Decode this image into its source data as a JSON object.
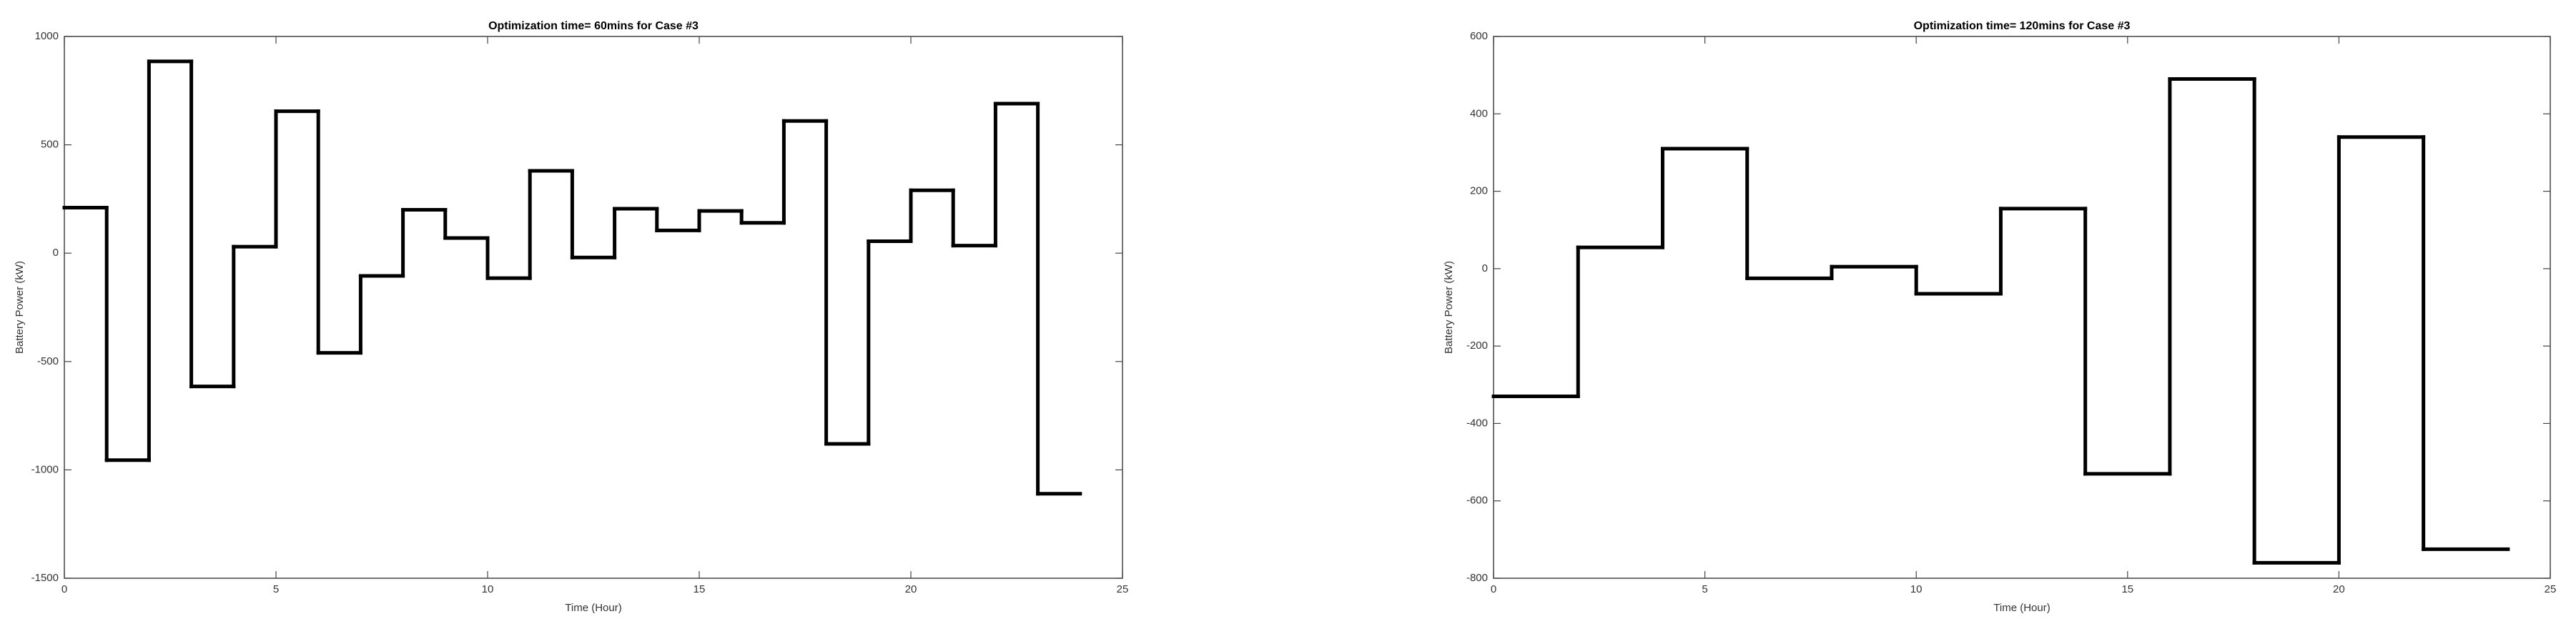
{
  "chart_data": [
    {
      "type": "step",
      "title": "Optimization time= 60mins for Case #3",
      "xlabel": "Time (Hour)",
      "ylabel": "Battery Power (kW)",
      "x": [
        0,
        1,
        2,
        3,
        4,
        5,
        6,
        7,
        8,
        9,
        10,
        11,
        12,
        13,
        14,
        15,
        16,
        17,
        18,
        19,
        20,
        21,
        22,
        23
      ],
      "values": [
        210,
        -955,
        885,
        -615,
        30,
        655,
        -460,
        -105,
        200,
        70,
        -115,
        380,
        -20,
        205,
        105,
        195,
        140,
        610,
        -880,
        55,
        290,
        35,
        690,
        -1110
      ],
      "color": "#000000",
      "xlim": [
        0,
        25
      ],
      "xticks": [
        0,
        5,
        10,
        15,
        20,
        25
      ],
      "ylim": [
        -1500,
        1000
      ],
      "yticks": [
        -1500,
        -1000,
        -500,
        0,
        500,
        1000
      ]
    },
    {
      "type": "step",
      "title": "Optimization time= 120mins for Case #3",
      "xlabel": "Time (Hour)",
      "ylabel": "Battery Power (kW)",
      "x": [
        0,
        2,
        4,
        6,
        8,
        10,
        12,
        14,
        16,
        18,
        20,
        22
      ],
      "values": [
        -330,
        55,
        310,
        -25,
        5,
        -65,
        155,
        -530,
        490,
        -760,
        340,
        -725
      ],
      "color": "#000000",
      "xlim": [
        0,
        25
      ],
      "xticks": [
        0,
        5,
        10,
        15,
        20,
        25
      ],
      "ylim": [
        -800,
        600
      ],
      "yticks": [
        -800,
        -600,
        -400,
        -200,
        0,
        200,
        400,
        600
      ]
    }
  ]
}
